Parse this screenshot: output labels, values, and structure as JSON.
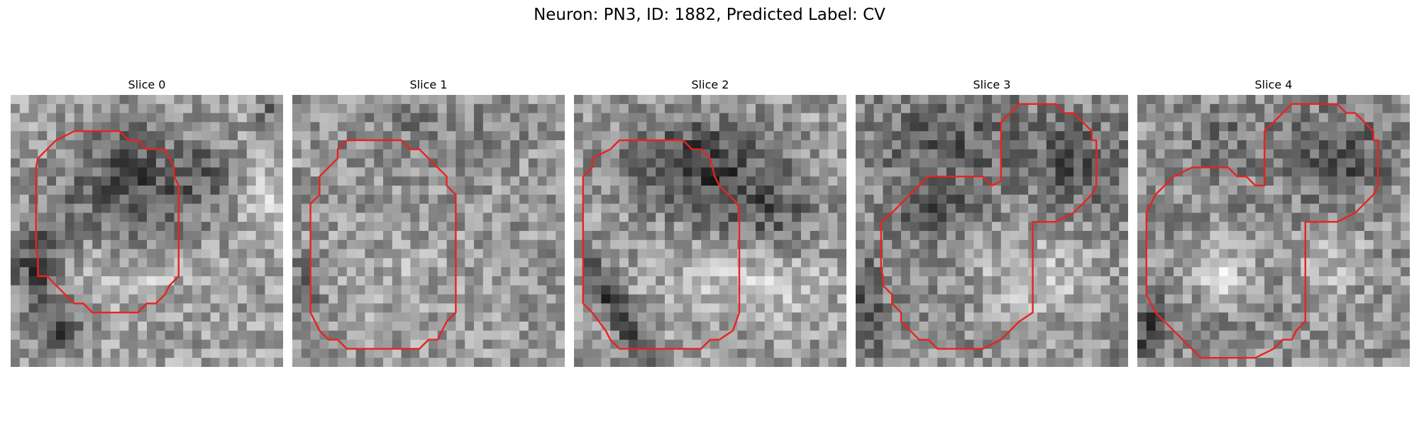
{
  "figure": {
    "title": "Neuron: PN3, ID: 1882, Predicted Label: CV"
  },
  "panels": [
    {
      "title": "Slice 0"
    },
    {
      "title": "Slice 1"
    },
    {
      "title": "Slice 2"
    },
    {
      "title": "Slice 3"
    },
    {
      "title": "Slice 4"
    }
  ],
  "colors": {
    "contour": "#e8231f",
    "colormap": "gray"
  }
}
